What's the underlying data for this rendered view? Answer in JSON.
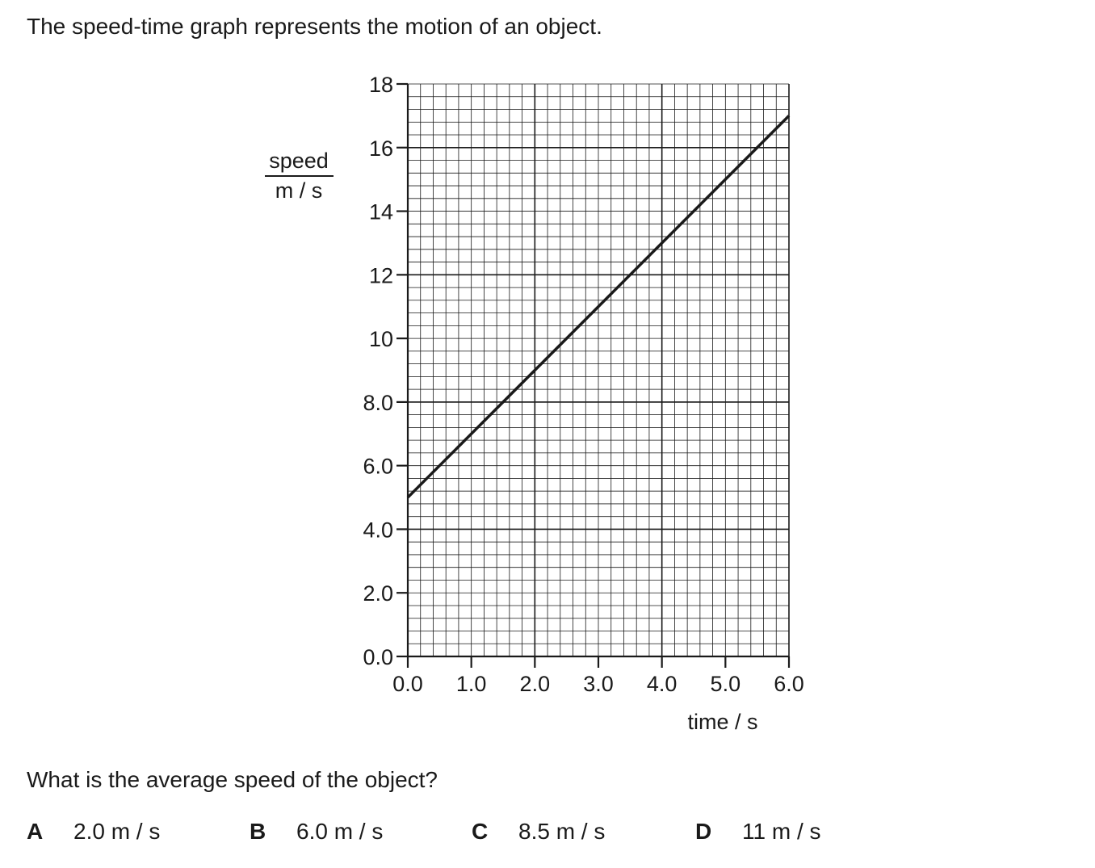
{
  "question": {
    "intro": "The speed-time graph represents the motion of an object.",
    "prompt": "What is the average speed of the object?",
    "options": [
      {
        "letter": "A",
        "value": "2.0 m / s"
      },
      {
        "letter": "B",
        "value": "6.0 m / s"
      },
      {
        "letter": "C",
        "value": "8.5 m / s"
      },
      {
        "letter": "D",
        "value": "11 m / s"
      }
    ]
  },
  "chart_data": {
    "type": "line",
    "title": "",
    "xlabel": "time / s",
    "ylabel_top": "speed",
    "ylabel_bottom": "m / s",
    "xlim": [
      0,
      6
    ],
    "ylim": [
      0,
      18
    ],
    "x_ticks": [
      "0.0",
      "1.0",
      "2.0",
      "3.0",
      "4.0",
      "5.0",
      "6.0"
    ],
    "y_ticks": [
      "0.0",
      "2.0",
      "4.0",
      "6.0",
      "8.0",
      "10",
      "12",
      "14",
      "16",
      "18"
    ],
    "grid": true,
    "series": [
      {
        "x": [
          0,
          6
        ],
        "y": [
          5,
          17
        ]
      }
    ]
  }
}
